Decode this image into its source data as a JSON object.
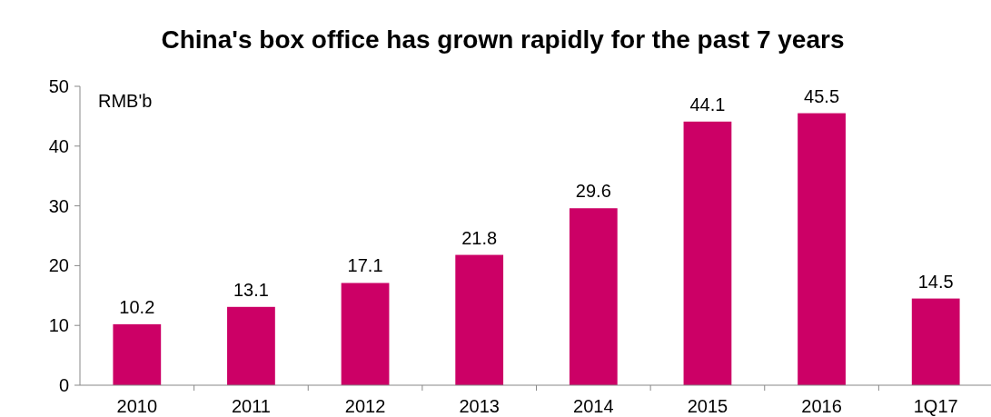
{
  "chart_data": {
    "type": "bar",
    "title": "China's box office has grown rapidly for the past 7 years",
    "ylabel": "RMB'b",
    "categories": [
      "2010",
      "2011",
      "2012",
      "2013",
      "2014",
      "2015",
      "2016",
      "1Q17"
    ],
    "values": [
      10.2,
      13.1,
      17.1,
      21.8,
      29.6,
      44.1,
      45.5,
      14.5
    ],
    "color": "#cc0066",
    "ylim": [
      0,
      50
    ],
    "yticks": [
      0,
      10,
      20,
      30,
      40,
      50
    ],
    "grid": false,
    "data_labels": true
  }
}
